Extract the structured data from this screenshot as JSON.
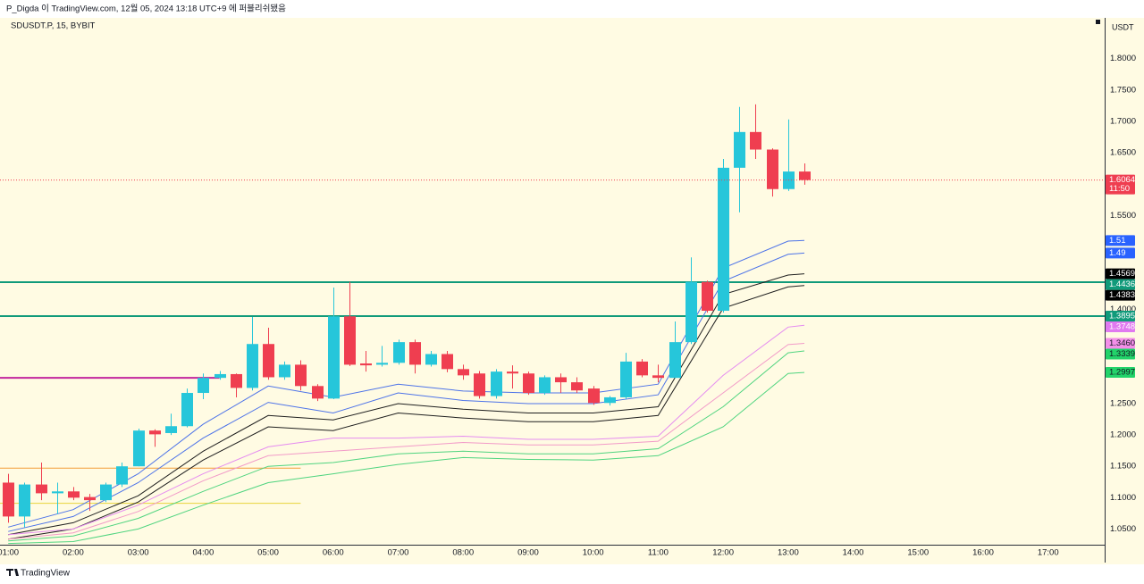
{
  "chart_data": {
    "type": "candlestick",
    "header": "P_Digda 이 TradingView.com, 12월 05, 2024 13:18 UTC+9 에 퍼블리쉬됐음",
    "title": "SDUSDT.P, 15, BYBIT",
    "currency": "USDT",
    "countdown": "11:50",
    "brand": "TradingView",
    "up_color": "#26c6da",
    "down_color": "#ef3e50",
    "x": [
      1,
      1.25,
      1.5,
      1.75,
      2,
      2.25,
      2.5,
      2.75,
      3,
      3.25,
      3.5,
      3.75,
      4,
      4.25,
      4.5,
      4.75,
      5,
      5.25,
      5.5,
      5.75,
      6,
      6.25,
      6.5,
      6.75,
      7,
      7.25,
      7.5,
      7.75,
      8,
      8.25,
      8.5,
      8.75,
      9,
      9.25,
      9.5,
      9.75,
      10,
      10.25,
      10.5,
      10.75,
      11,
      11.25,
      11.5,
      11.75,
      12,
      12.25,
      12.5,
      12.75,
      13,
      13.25
    ],
    "open": [
      1.124,
      1.07,
      1.121,
      1.107,
      1.11,
      1.101,
      1.096,
      1.121,
      1.15,
      1.207,
      1.203,
      1.214,
      1.267,
      1.291,
      1.297,
      1.275,
      1.345,
      1.292,
      1.312,
      1.278,
      1.258,
      1.389,
      1.314,
      1.312,
      1.315,
      1.348,
      1.312,
      1.329,
      1.305,
      1.298,
      1.262,
      1.301,
      1.298,
      1.267,
      1.292,
      1.284,
      1.274,
      1.251,
      1.26,
      1.317,
      1.295,
      1.291,
      1.348,
      1.444,
      1.398,
      1.626,
      1.683,
      1.655,
      1.592,
      1.62
    ],
    "high": [
      1.138,
      1.124,
      1.156,
      1.124,
      1.117,
      1.106,
      1.124,
      1.156,
      1.21,
      1.209,
      1.234,
      1.274,
      1.298,
      1.302,
      1.298,
      1.388,
      1.371,
      1.317,
      1.319,
      1.281,
      1.435,
      1.444,
      1.334,
      1.342,
      1.352,
      1.352,
      1.334,
      1.334,
      1.312,
      1.302,
      1.305,
      1.311,
      1.301,
      1.295,
      1.298,
      1.292,
      1.278,
      1.262,
      1.331,
      1.321,
      1.312,
      1.381,
      1.483,
      1.446,
      1.64,
      1.723,
      1.727,
      1.657,
      1.703,
      1.633
    ],
    "low": [
      1.06,
      1.053,
      1.096,
      1.074,
      1.096,
      1.079,
      1.093,
      1.117,
      1.15,
      1.181,
      1.2,
      1.212,
      1.257,
      1.288,
      1.26,
      1.271,
      1.288,
      1.288,
      1.271,
      1.254,
      1.257,
      1.31,
      1.301,
      1.309,
      1.312,
      1.298,
      1.309,
      1.3,
      1.288,
      1.258,
      1.258,
      1.274,
      1.264,
      1.264,
      1.267,
      1.267,
      1.248,
      1.247,
      1.257,
      1.292,
      1.284,
      1.291,
      1.345,
      1.395,
      1.395,
      1.555,
      1.64,
      1.58,
      1.589,
      1.599
    ],
    "close": [
      1.07,
      1.121,
      1.107,
      1.11,
      1.1,
      1.096,
      1.121,
      1.15,
      1.207,
      1.201,
      1.214,
      1.267,
      1.291,
      1.297,
      1.275,
      1.345,
      1.292,
      1.312,
      1.278,
      1.258,
      1.389,
      1.312,
      1.311,
      1.315,
      1.348,
      1.312,
      1.329,
      1.305,
      1.295,
      1.262,
      1.301,
      1.298,
      1.267,
      1.292,
      1.284,
      1.271,
      1.251,
      1.26,
      1.317,
      1.295,
      1.291,
      1.348,
      1.444,
      1.398,
      1.626,
      1.683,
      1.655,
      1.592,
      1.62,
      1.6064
    ],
    "line_x": [
      1,
      2,
      3,
      4,
      5,
      6,
      7,
      8,
      9,
      10,
      11,
      12,
      13,
      13.25
    ],
    "lines": [
      {
        "color": "#4d73e8",
        "label_color": "#2962ff",
        "last_label": "1.51",
        "values": [
          1.053,
          1.081,
          1.138,
          1.217,
          1.278,
          1.26,
          1.281,
          1.27,
          1.267,
          1.267,
          1.281,
          1.466,
          1.509,
          1.51
        ]
      },
      {
        "color": "#4d73e8",
        "label_color": "#2962ff",
        "last_label": "1.49",
        "values": [
          1.046,
          1.07,
          1.124,
          1.195,
          1.252,
          1.235,
          1.267,
          1.255,
          1.25,
          1.25,
          1.264,
          1.445,
          1.488,
          1.49
        ]
      },
      {
        "color": "#1e1e1e",
        "label_color": "#000000",
        "last_label": "1.4569",
        "values": [
          1.041,
          1.06,
          1.103,
          1.174,
          1.231,
          1.224,
          1.25,
          1.241,
          1.235,
          1.235,
          1.245,
          1.424,
          1.455,
          1.4569
        ]
      },
      {
        "color": "#1e1e1e",
        "label_color": "#000000",
        "last_label": "1.4383",
        "values": [
          1.034,
          1.05,
          1.093,
          1.16,
          1.213,
          1.207,
          1.235,
          1.227,
          1.221,
          1.221,
          1.231,
          1.402,
          1.436,
          1.4383
        ]
      },
      {
        "color": "#e58cf0",
        "label_color": "#e07af0",
        "last_label": "1.3748",
        "values": [
          1.041,
          1.05,
          1.088,
          1.138,
          1.181,
          1.195,
          1.195,
          1.198,
          1.193,
          1.193,
          1.198,
          1.295,
          1.372,
          1.3748
        ]
      },
      {
        "color": "#f29ac8",
        "label_color": "#f48fe8",
        "last_label": "1.3460",
        "values": [
          1.034,
          1.044,
          1.078,
          1.127,
          1.167,
          1.174,
          1.181,
          1.188,
          1.184,
          1.184,
          1.19,
          1.267,
          1.344,
          1.346
        ]
      },
      {
        "color": "#4fd47f",
        "label_color": "#22d36a",
        "last_label": "1.3339",
        "values": [
          1.031,
          1.039,
          1.067,
          1.11,
          1.15,
          1.156,
          1.17,
          1.174,
          1.17,
          1.17,
          1.178,
          1.245,
          1.331,
          1.3339
        ]
      },
      {
        "color": "#4fd47f",
        "label_color": "#22d36a",
        "last_label": "1.2997",
        "values": [
          1.027,
          1.03,
          1.05,
          1.088,
          1.124,
          1.138,
          1.153,
          1.164,
          1.161,
          1.16,
          1.167,
          1.213,
          1.298,
          1.2997
        ]
      }
    ],
    "hlines": [
      {
        "value": 1.4436,
        "color": "#109a7a"
      },
      {
        "value": 1.3895,
        "color": "#109a7a"
      }
    ],
    "segments": [
      {
        "value": 1.291,
        "x_end": 4.25,
        "color": "#c2259e"
      },
      {
        "value": 1.147,
        "x_end": 5.5,
        "color": "#f29d38"
      },
      {
        "value": 1.091,
        "x_end": 5.5,
        "color": "#e8d33a"
      }
    ],
    "xlim": [
      0.97,
      17.87
    ],
    "xticks": [
      {
        "value": 1,
        "label": "01:00"
      },
      {
        "value": 2,
        "label": "02:00"
      },
      {
        "value": 3,
        "label": "03:00"
      },
      {
        "value": 4,
        "label": "04:00"
      },
      {
        "value": 5,
        "label": "05:00"
      },
      {
        "value": 6,
        "label": "06:00"
      },
      {
        "value": 7,
        "label": "07:00"
      },
      {
        "value": 8,
        "label": "08:00"
      },
      {
        "value": 9,
        "label": "09:00"
      },
      {
        "value": 10,
        "label": "10:00"
      },
      {
        "value": 11,
        "label": "11:00"
      },
      {
        "value": 12,
        "label": "12:00"
      },
      {
        "value": 13,
        "label": "13:00"
      },
      {
        "value": 14,
        "label": "14:00"
      },
      {
        "value": 15,
        "label": "15:00"
      },
      {
        "value": 16,
        "label": "16:00"
      },
      {
        "value": 17,
        "label": "17:00"
      }
    ],
    "ylim": [
      1.025,
      1.865
    ],
    "yticks": [
      {
        "value": 1.05,
        "label": "1.0500"
      },
      {
        "value": 1.1,
        "label": "1.1000"
      },
      {
        "value": 1.15,
        "label": "1.1500"
      },
      {
        "value": 1.2,
        "label": "1.2000"
      },
      {
        "value": 1.25,
        "label": "1.2500"
      },
      {
        "value": 1.4,
        "label": "1.4000"
      },
      {
        "value": 1.55,
        "label": "1.5500"
      },
      {
        "value": 1.65,
        "label": "1.6500"
      },
      {
        "value": 1.7,
        "label": "1.7000"
      },
      {
        "value": 1.75,
        "label": "1.7500"
      },
      {
        "value": 1.8,
        "label": "1.8000"
      }
    ],
    "grid": false
  }
}
